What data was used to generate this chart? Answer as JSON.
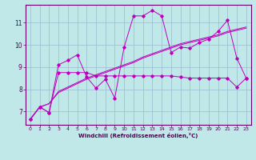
{
  "xlabel": "Windchill (Refroidissement éolien,°C)",
  "xlim": [
    -0.5,
    23.5
  ],
  "ylim": [
    6.4,
    11.8
  ],
  "yticks": [
    7,
    8,
    9,
    10,
    11
  ],
  "xticks": [
    0,
    1,
    2,
    3,
    4,
    5,
    6,
    7,
    8,
    9,
    10,
    11,
    12,
    13,
    14,
    15,
    16,
    17,
    18,
    19,
    20,
    21,
    22,
    23
  ],
  "bg_color": "#c0e8e8",
  "grid_color": "#99bbcc",
  "line_color": "#bb00bb",
  "line1_x": [
    0,
    1,
    2,
    3,
    4,
    5,
    6,
    7,
    8,
    9,
    10,
    11,
    12,
    13,
    14,
    15,
    16,
    17,
    18,
    19,
    20,
    21,
    22,
    23
  ],
  "line1_y": [
    6.65,
    7.2,
    6.95,
    9.1,
    9.3,
    9.55,
    8.55,
    8.05,
    8.45,
    7.6,
    9.9,
    11.3,
    11.3,
    11.55,
    11.3,
    9.65,
    9.9,
    9.85,
    10.1,
    10.25,
    10.6,
    11.1,
    9.4,
    8.5
  ],
  "line2_x": [
    0,
    1,
    2,
    3,
    4,
    5,
    6,
    7,
    8,
    9,
    10,
    11,
    12,
    13,
    14,
    15,
    16,
    17,
    18,
    19,
    20,
    21,
    22,
    23
  ],
  "line2_y": [
    6.65,
    7.2,
    6.95,
    8.75,
    8.75,
    8.75,
    8.75,
    8.6,
    8.6,
    8.6,
    8.6,
    8.6,
    8.6,
    8.6,
    8.6,
    8.6,
    8.55,
    8.5,
    8.5,
    8.5,
    8.5,
    8.5,
    8.1,
    8.5
  ],
  "line3_x": [
    0,
    1,
    2,
    3,
    4,
    5,
    6,
    7,
    8,
    9,
    10,
    11,
    12,
    13,
    14,
    15,
    16,
    17,
    18,
    19,
    20,
    21,
    22,
    23
  ],
  "line3_y": [
    6.65,
    7.2,
    7.35,
    7.85,
    8.05,
    8.25,
    8.45,
    8.6,
    8.75,
    8.9,
    9.05,
    9.2,
    9.4,
    9.55,
    9.7,
    9.85,
    10.0,
    10.1,
    10.2,
    10.3,
    10.4,
    10.55,
    10.65,
    10.75
  ],
  "line4_x": [
    0,
    1,
    2,
    3,
    4,
    5,
    6,
    7,
    8,
    9,
    10,
    11,
    12,
    13,
    14,
    15,
    16,
    17,
    18,
    19,
    20,
    21,
    22,
    23
  ],
  "line4_y": [
    6.65,
    7.2,
    7.35,
    7.9,
    8.1,
    8.3,
    8.5,
    8.65,
    8.8,
    8.95,
    9.1,
    9.25,
    9.45,
    9.6,
    9.75,
    9.9,
    10.05,
    10.15,
    10.25,
    10.35,
    10.45,
    10.6,
    10.7,
    10.8
  ]
}
